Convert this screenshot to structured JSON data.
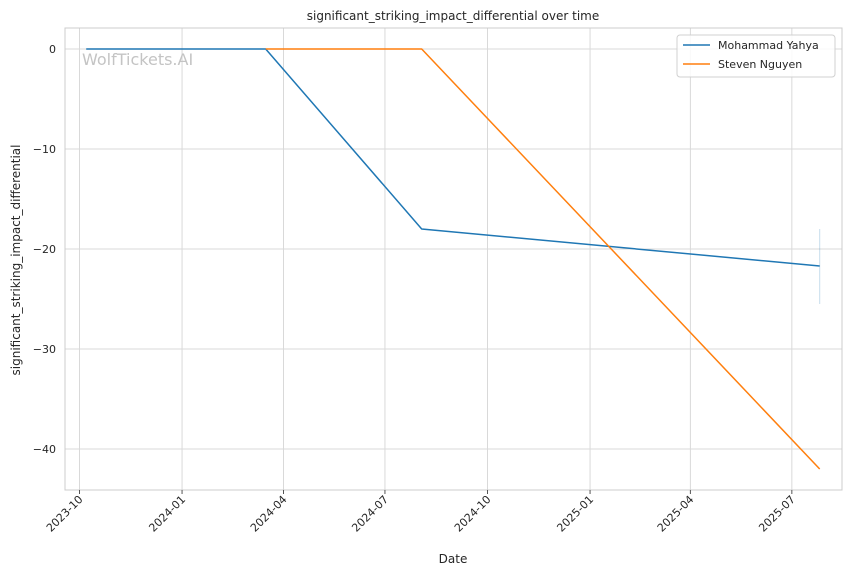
{
  "chart_data": {
    "type": "line",
    "title": "significant_striking_impact_differential over time",
    "xlabel": "Date",
    "ylabel": "significant_striking_impact_differential",
    "watermark": "WolfTickets.AI",
    "x_ticks": [
      "2023-10",
      "2024-01",
      "2024-04",
      "2024-07",
      "2024-10",
      "2025-01",
      "2025-04",
      "2025-07"
    ],
    "y_ticks": [
      0,
      -10,
      -20,
      -30,
      -40
    ],
    "xlim": [
      "2023-09-18",
      "2025-08-15"
    ],
    "ylim": [
      -44.1,
      2.1
    ],
    "grid": true,
    "legend_position": "top-right",
    "series": [
      {
        "name": "Mohammad Yahya",
        "color": "#1f77b4",
        "points": [
          {
            "x": "2023-10-07",
            "y": 0
          },
          {
            "x": "2024-03-16",
            "y": 0
          },
          {
            "x": "2024-08-03",
            "y": -18
          },
          {
            "x": "2025-07-26",
            "y": -21.7
          }
        ],
        "error_band": {
          "x": "2025-07-26",
          "low": -25.5,
          "high": -18
        }
      },
      {
        "name": "Steven Nguyen",
        "color": "#ff7f0e",
        "points": [
          {
            "x": "2024-03-16",
            "y": 0
          },
          {
            "x": "2024-08-03",
            "y": 0
          },
          {
            "x": "2025-07-26",
            "y": -42
          }
        ]
      }
    ]
  }
}
